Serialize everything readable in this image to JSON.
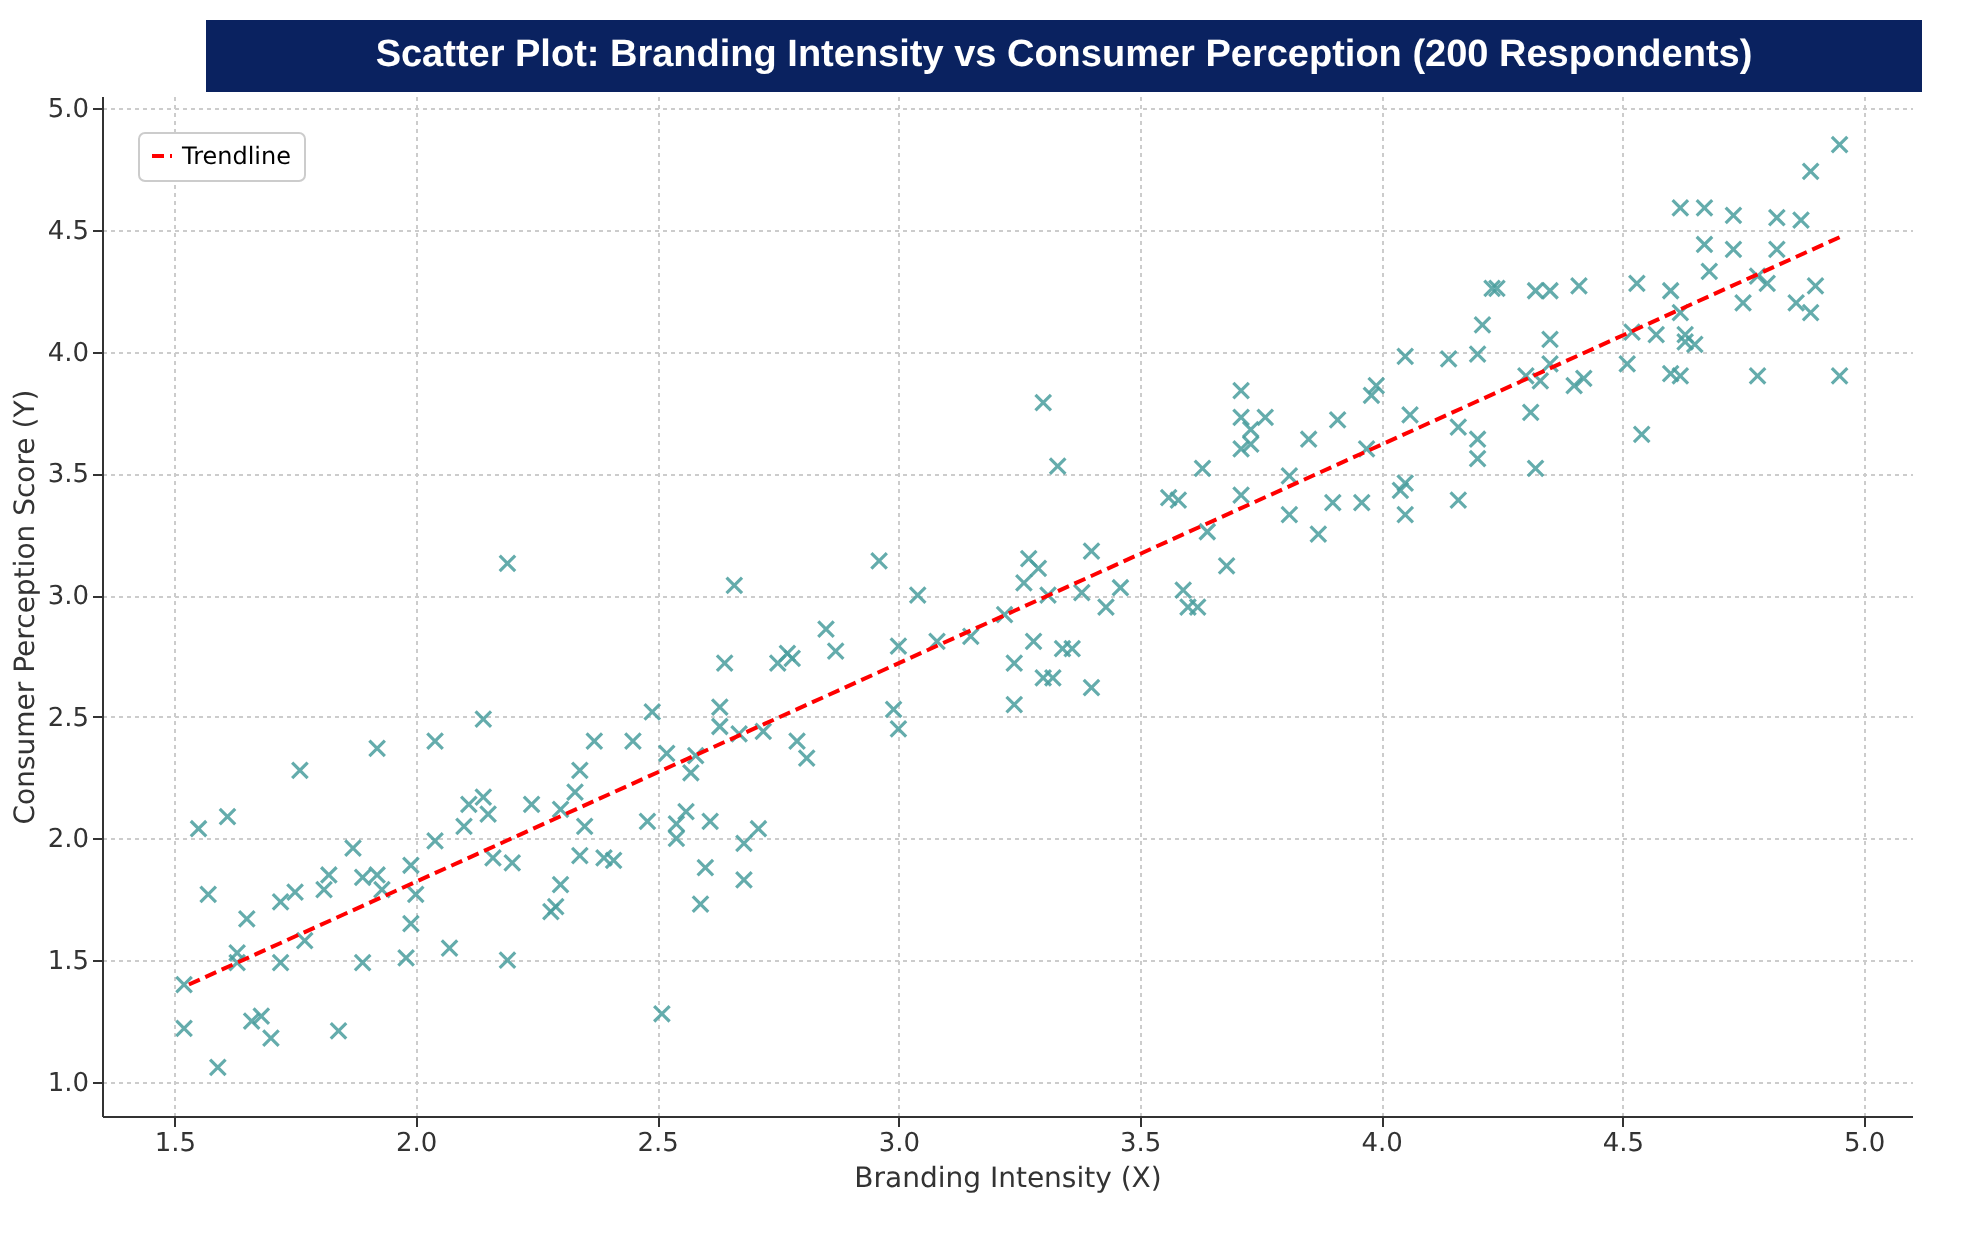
{
  "chart_data": {
    "type": "scatter",
    "title": "Scatter Plot: Branding Intensity vs Consumer Perception (200 Respondents)",
    "xlabel": "Branding Intensity (X)",
    "ylabel": "Consumer Perception Score (Y)",
    "xlim": [
      1.35,
      5.1
    ],
    "ylim": [
      0.86,
      5.05
    ],
    "xticks": [
      1.5,
      {
        "value": 2,
        "label": "2.0"
      },
      2.5,
      {
        "value": 3,
        "label": "3.0"
      },
      3.5,
      {
        "value": 4,
        "label": "4.0"
      },
      4.5,
      {
        "value": 5,
        "label": "5.0"
      }
    ],
    "yticks": [
      {
        "value": 1,
        "label": "1.0"
      },
      1.5,
      {
        "value": 2,
        "label": "2.0"
      },
      2.5,
      {
        "value": 3,
        "label": "3.0"
      },
      3.5,
      {
        "value": 4,
        "label": "4.0"
      },
      4.5,
      {
        "value": 5,
        "label": "5.0"
      }
    ],
    "grid": true,
    "legend": "top left",
    "marker": "cross",
    "series": [
      {
        "color": "#4a9e9e",
        "x": [
          1.52,
          1.52,
          1.55,
          1.57,
          1.59,
          1.61,
          1.63,
          1.63,
          1.65,
          1.66,
          1.68,
          1.7,
          1.72,
          1.72,
          1.75,
          1.76,
          1.77,
          1.81,
          1.82,
          1.84,
          1.87,
          1.89,
          1.89,
          1.92,
          1.92,
          1.93,
          1.98,
          1.99,
          1.99,
          2.0,
          2.04,
          2.04,
          2.07,
          2.1,
          2.11,
          2.14,
          2.14,
          2.15,
          2.16,
          2.19,
          2.19,
          2.2,
          2.24,
          2.28,
          2.29,
          2.3,
          2.3,
          2.33,
          2.34,
          2.34,
          2.35,
          2.37,
          2.39,
          2.41,
          2.45,
          2.48,
          2.49,
          2.51,
          2.52,
          2.54,
          2.54,
          2.56,
          2.57,
          2.58,
          2.59,
          2.6,
          2.61,
          2.63,
          2.63,
          2.64,
          2.66,
          2.67,
          2.68,
          2.68,
          2.71,
          2.72,
          2.75,
          2.77,
          2.78,
          2.79,
          2.81,
          2.85,
          2.87,
          2.96,
          2.99,
          3.0,
          3.0,
          3.04,
          3.08,
          3.15,
          3.22,
          3.24,
          3.24,
          3.26,
          3.27,
          3.28,
          3.29,
          3.3,
          3.3,
          3.31,
          3.32,
          3.33,
          3.34,
          3.36,
          3.38,
          3.4,
          3.4,
          3.43,
          3.46,
          3.56,
          3.58,
          3.63,
          3.64,
          3.59,
          3.6,
          3.62,
          3.68,
          3.71,
          3.71,
          3.73,
          3.76,
          3.71,
          3.73,
          3.71,
          3.81,
          3.81,
          3.85,
          3.87,
          3.9,
          3.91,
          3.96,
          3.97,
          3.98,
          3.99,
          4.04,
          4.05,
          4.05,
          4.05,
          4.06,
          4.14,
          4.16,
          4.16,
          4.2,
          4.2,
          4.2,
          4.21,
          4.23,
          4.24,
          4.31,
          4.32,
          4.3,
          4.33,
          4.32,
          4.35,
          4.35,
          4.35,
          4.4,
          4.42,
          4.41,
          4.51,
          4.52,
          4.53,
          4.54,
          4.57,
          4.6,
          4.6,
          4.62,
          4.62,
          4.63,
          4.63,
          4.65,
          4.62,
          4.67,
          4.67,
          4.68,
          4.73,
          4.73,
          4.75,
          4.78,
          4.8,
          4.78,
          4.82,
          4.82,
          4.86,
          4.87,
          4.89,
          4.9,
          4.89,
          4.95,
          4.95
        ],
        "values": [
          1.22,
          1.4,
          2.04,
          1.77,
          1.06,
          2.09,
          1.53,
          1.49,
          1.67,
          1.25,
          1.27,
          1.18,
          1.49,
          1.74,
          1.78,
          2.28,
          1.58,
          1.79,
          1.85,
          1.21,
          1.96,
          1.84,
          1.49,
          2.37,
          1.85,
          1.79,
          1.51,
          1.89,
          1.65,
          1.77,
          1.99,
          2.4,
          1.55,
          2.05,
          2.14,
          2.17,
          2.49,
          2.1,
          1.92,
          3.13,
          1.5,
          1.9,
          2.14,
          1.7,
          1.72,
          1.81,
          2.12,
          2.19,
          2.28,
          1.93,
          2.05,
          2.4,
          1.92,
          1.91,
          2.4,
          2.07,
          2.52,
          1.28,
          2.35,
          2.0,
          2.06,
          2.11,
          2.27,
          2.34,
          1.73,
          1.88,
          2.07,
          2.46,
          2.54,
          2.72,
          3.04,
          2.43,
          1.83,
          1.98,
          2.04,
          2.44,
          2.72,
          2.76,
          2.74,
          2.4,
          2.33,
          2.86,
          2.77,
          3.14,
          2.53,
          2.79,
          2.45,
          3.0,
          2.81,
          2.83,
          2.92,
          2.72,
          2.55,
          3.05,
          3.15,
          2.81,
          3.11,
          2.66,
          3.79,
          3.0,
          2.66,
          3.53,
          2.78,
          2.78,
          3.01,
          2.62,
          3.18,
          2.95,
          3.03,
          3.4,
          3.39,
          3.52,
          3.26,
          3.02,
          2.95,
          2.95,
          3.12,
          3.84,
          3.73,
          3.68,
          3.73,
          3.6,
          3.62,
          3.41,
          3.33,
          3.49,
          3.64,
          3.25,
          3.38,
          3.72,
          3.38,
          3.6,
          3.82,
          3.86,
          3.43,
          3.46,
          3.33,
          3.98,
          3.74,
          3.97,
          3.39,
          3.69,
          3.64,
          3.56,
          3.99,
          4.11,
          4.26,
          4.26,
          3.75,
          3.52,
          3.9,
          3.88,
          4.25,
          4.25,
          4.05,
          3.95,
          3.86,
          3.89,
          4.27,
          3.95,
          4.08,
          4.28,
          3.66,
          4.07,
          4.25,
          3.91,
          3.9,
          4.16,
          4.07,
          4.04,
          4.03,
          4.59,
          4.59,
          4.44,
          4.33,
          4.42,
          4.56,
          4.2,
          4.31,
          4.28,
          3.9,
          4.55,
          4.42,
          4.2,
          4.54,
          4.16,
          4.27,
          4.74,
          4.85,
          3.9
        ]
      },
      {
        "type": "line",
        "name": "Trendline",
        "color": "#ff0000",
        "line_style": "dashed",
        "marker": "none",
        "x": [
          1.53,
          4.95
        ],
        "values": [
          1.4,
          4.47
        ]
      }
    ]
  }
}
